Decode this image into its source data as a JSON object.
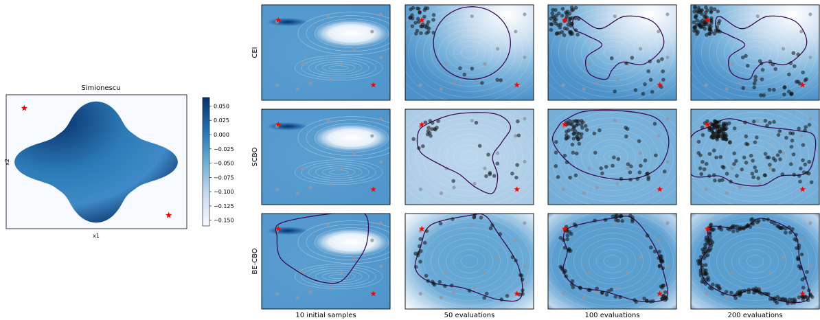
{
  "chart_data": [
    {
      "type": "heatmap",
      "title": "Simionescu",
      "xlabel": "x1",
      "ylabel": "x2",
      "colorbar": {
        "ticks": [
          "0.050",
          "0.025",
          "0.000",
          "−0.025",
          "−0.050",
          "−0.075",
          "−0.100",
          "−0.125",
          "−0.150"
        ],
        "range": [
          -0.16,
          0.065
        ],
        "colormap": "Blues"
      },
      "optima": [
        [
          -1.0,
          1.0
        ],
        [
          1.0,
          -1.0
        ]
      ],
      "marker_color": "#ff0000"
    },
    {
      "type": "heatmap",
      "grid": {
        "rows": 3,
        "cols": 4
      },
      "row_labels": [
        "CEI",
        "SCBO",
        "BE-CBO"
      ],
      "col_labels": [
        "10 initial samples",
        "50 evaluations",
        "100 evaluations",
        "200 evaluations"
      ],
      "boundary_color": "#3b0a52",
      "sample_color": "#000000",
      "marker_color": "#ff0000"
    }
  ]
}
